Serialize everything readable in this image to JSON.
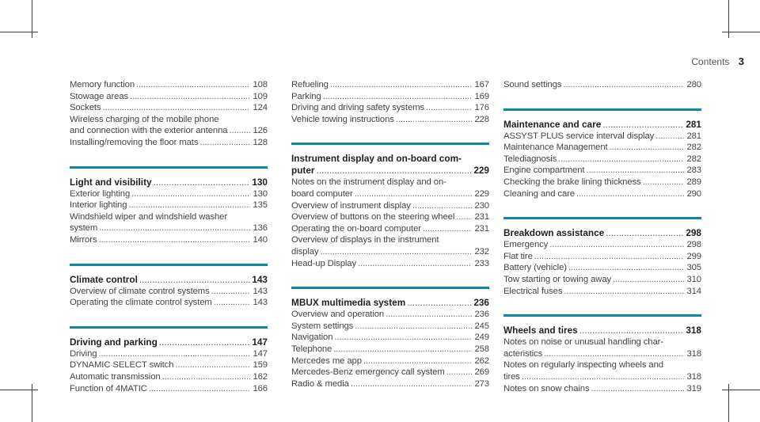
{
  "header": {
    "title": "Contents",
    "page": "3"
  },
  "columns": [
    {
      "sections": [
        {
          "entries": [
            {
              "t": "Memory function",
              "p": "108"
            },
            {
              "t": "Stowage areas",
              "p": "109"
            },
            {
              "t": "Sockets",
              "p": "124"
            },
            {
              "t1": "Wireless charging of the mobile phone",
              "t": "and connection with the exterior antenna",
              "p": "126"
            },
            {
              "t": "Installing/removing the floor mats",
              "p": "128"
            }
          ]
        },
        {
          "title": "Light and visibility",
          "page": "130",
          "entries": [
            {
              "t": "Exterior lighting",
              "p": "130"
            },
            {
              "t": "Interior lighting",
              "p": "135"
            },
            {
              "t1": "Windshield wiper and windshield washer",
              "t": "system",
              "p": "136"
            },
            {
              "t": "Mirrors",
              "p": "140"
            }
          ]
        },
        {
          "title": "Climate control",
          "page": "143",
          "entries": [
            {
              "t": "Overview of climate control systems",
              "p": "143"
            },
            {
              "t": "Operating the climate control system",
              "p": "143"
            }
          ]
        },
        {
          "title": "Driving and parking",
          "page": "147",
          "entries": [
            {
              "t": "Driving",
              "p": "147"
            },
            {
              "t": "DYNAMIC SELECT switch",
              "p": "159"
            },
            {
              "t": "Automatic transmission",
              "p": "162"
            },
            {
              "t": "Function of 4MATIC",
              "p": "166"
            }
          ]
        }
      ]
    },
    {
      "sections": [
        {
          "entries": [
            {
              "t": "Refueling",
              "p": "167"
            },
            {
              "t": "Parking",
              "p": "169"
            },
            {
              "t": "Driving and driving safety systems",
              "p": "176"
            },
            {
              "t": "Vehicle towing instructions",
              "p": "228"
            }
          ]
        },
        {
          "title1": "Instrument display and on-board com-",
          "title": "puter",
          "page": "229",
          "entries": [
            {
              "t1": "Notes on the instrument display and on-",
              "t": "board computer",
              "p": "229"
            },
            {
              "t": "Overview of instrument display",
              "p": "230"
            },
            {
              "t": "Overview of buttons on the steering wheel",
              "p": "231"
            },
            {
              "t": "Operating the on-board computer",
              "p": "231"
            },
            {
              "t1": "Overview of displays in the instrument",
              "t": "display",
              "p": "232"
            },
            {
              "t": "Head-up Display",
              "p": "233"
            }
          ]
        },
        {
          "title": "MBUX multimedia system",
          "page": "236",
          "entries": [
            {
              "t": "Overview and operation",
              "p": "236"
            },
            {
              "t": "System settings",
              "p": "245"
            },
            {
              "t": "Navigation",
              "p": "249"
            },
            {
              "t": "Telephone",
              "p": "258"
            },
            {
              "t": "Mercedes me app",
              "p": "262"
            },
            {
              "t": "Mercedes-Benz emergency call system",
              "p": "269"
            },
            {
              "t": "Radio & media",
              "p": "273"
            }
          ]
        }
      ]
    },
    {
      "sections": [
        {
          "entries": [
            {
              "t": "Sound settings",
              "p": "280"
            }
          ]
        },
        {
          "title": "Maintenance and care",
          "page": "281",
          "entries": [
            {
              "t": "ASSYST PLUS service interval display",
              "p": "281"
            },
            {
              "t": "Maintenance Management",
              "p": "282"
            },
            {
              "t": "Telediagnosis",
              "p": "282"
            },
            {
              "t": "Engine compartment",
              "p": "283"
            },
            {
              "t": "Checking the brake lining thickness",
              "p": "289"
            },
            {
              "t": "Cleaning and care",
              "p": "290"
            }
          ]
        },
        {
          "title": "Breakdown assistance",
          "page": "298",
          "entries": [
            {
              "t": "Emergency",
              "p": "298"
            },
            {
              "t": "Flat tire",
              "p": "299"
            },
            {
              "t": "Battery (vehicle)",
              "p": "305"
            },
            {
              "t": "Tow starting or towing away",
              "p": "310"
            },
            {
              "t": "Electrical fuses",
              "p": "314"
            }
          ]
        },
        {
          "title": "Wheels and tires",
          "page": "318",
          "entries": [
            {
              "t1": "Notes on noise or unusual handling char-",
              "t": "acteristics",
              "p": "318"
            },
            {
              "t1": "Notes on regularly inspecting wheels and",
              "t": "tires",
              "p": "318"
            },
            {
              "t": "Notes on snow chains",
              "p": "319"
            }
          ]
        }
      ]
    }
  ]
}
